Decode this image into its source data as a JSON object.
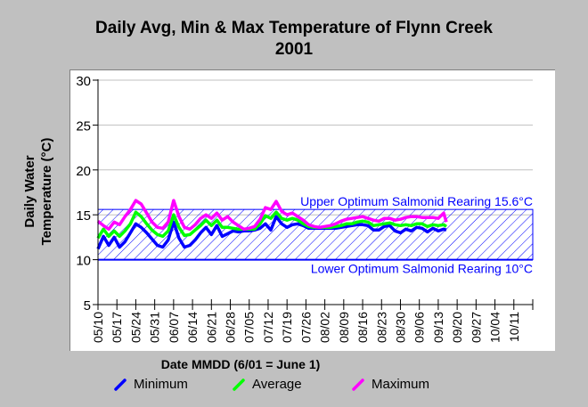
{
  "chart_data": {
    "type": "line",
    "title": "Daily Avg, Min & Max Temperature of Flynn Creek",
    "subtitle": "2001",
    "xlabel": "Date MMDD (6/01 = June 1)",
    "ylabel_line1": "Daily Water",
    "ylabel_line2": "Temperature (°C)",
    "ylim": [
      5,
      30
    ],
    "yticks": [
      5,
      10,
      15,
      20,
      25,
      30
    ],
    "grid": true,
    "x_start": "05/10",
    "x_days_range": [
      0,
      161
    ],
    "xticks": [
      "05/10",
      "05/17",
      "05/24",
      "05/31",
      "06/07",
      "06/14",
      "06/21",
      "06/28",
      "07/05",
      "07/12",
      "07/19",
      "07/26",
      "08/02",
      "08/09",
      "08/16",
      "08/23",
      "08/30",
      "09/06",
      "09/13",
      "09/20",
      "09/27",
      "10/04",
      "10/11",
      ""
    ],
    "band": {
      "lower": 10,
      "upper": 15.6,
      "upper_label": "Upper Optimum Salmonid Rearing 15.6°C",
      "lower_label": "Lower Optimum Salmonid Rearing 10°C",
      "color": "#0000ff"
    },
    "legend_position": "bottom",
    "x": [
      0,
      2,
      4,
      6,
      8,
      10,
      12,
      14,
      16,
      18,
      20,
      22,
      24,
      26,
      28,
      30,
      32,
      34,
      36,
      38,
      40,
      42,
      44,
      46,
      48,
      50,
      52,
      54,
      56,
      58,
      60,
      62,
      64,
      66,
      68,
      70,
      72,
      74,
      76,
      78,
      80,
      82,
      84,
      86,
      88,
      90,
      92,
      94,
      96,
      98,
      100,
      102,
      104,
      106,
      108,
      110,
      112,
      114,
      116,
      118,
      120,
      122,
      124,
      126,
      128,
      129
    ],
    "series": [
      {
        "name": "Minimum",
        "color": "#0000ff",
        "values": [
          11.2,
          12.6,
          11.6,
          12.5,
          11.4,
          12.0,
          13.0,
          14.0,
          13.6,
          13.0,
          12.3,
          11.6,
          11.4,
          12.2,
          14.2,
          12.4,
          11.4,
          11.6,
          12.2,
          13.0,
          13.6,
          12.8,
          13.8,
          12.6,
          12.9,
          13.2,
          13.1,
          13.2,
          13.2,
          13.3,
          13.5,
          14.0,
          13.3,
          14.8,
          14.0,
          13.6,
          13.9,
          14.0,
          13.8,
          13.5,
          13.5,
          13.5,
          13.5,
          13.5,
          13.5,
          13.6,
          13.7,
          13.8,
          13.9,
          13.9,
          13.8,
          13.3,
          13.3,
          13.7,
          13.8,
          13.2,
          13.0,
          13.4,
          13.2,
          13.6,
          13.5,
          13.1,
          13.5,
          13.2,
          13.4,
          13.3
        ]
      },
      {
        "name": "Average",
        "color": "#00ff00",
        "values": [
          12.4,
          13.4,
          12.6,
          13.2,
          12.6,
          13.2,
          14.0,
          15.3,
          14.8,
          14.0,
          13.3,
          12.8,
          12.6,
          13.2,
          15.0,
          13.6,
          12.7,
          12.8,
          13.3,
          13.8,
          14.4,
          13.8,
          14.4,
          13.6,
          13.6,
          13.5,
          13.4,
          13.4,
          13.4,
          13.4,
          14.0,
          14.9,
          14.6,
          15.3,
          14.6,
          14.4,
          14.6,
          14.4,
          14.0,
          13.7,
          13.6,
          13.6,
          13.6,
          13.6,
          13.7,
          13.8,
          14.0,
          14.0,
          14.2,
          14.3,
          14.2,
          13.8,
          13.9,
          14.0,
          14.1,
          13.9,
          13.8,
          13.9,
          13.8,
          14.0,
          14.0,
          13.7,
          13.9,
          13.8,
          13.9,
          13.7
        ]
      },
      {
        "name": "Maximum",
        "color": "#ff00ff",
        "values": [
          14.3,
          13.8,
          13.4,
          14.2,
          13.9,
          14.8,
          15.6,
          16.6,
          16.2,
          15.2,
          14.2,
          13.6,
          13.5,
          14.2,
          16.6,
          14.8,
          13.6,
          13.4,
          13.9,
          14.6,
          15.0,
          14.6,
          15.2,
          14.4,
          14.8,
          14.2,
          13.8,
          13.4,
          13.5,
          13.7,
          14.5,
          15.8,
          15.6,
          16.5,
          15.4,
          15.0,
          15.2,
          14.8,
          14.4,
          13.9,
          13.7,
          13.6,
          13.7,
          13.8,
          14.0,
          14.3,
          14.5,
          14.6,
          14.7,
          14.8,
          14.6,
          14.4,
          14.3,
          14.6,
          14.6,
          14.4,
          14.5,
          14.7,
          14.8,
          14.8,
          14.7,
          14.7,
          14.7,
          14.6,
          15.2,
          14.2
        ]
      }
    ]
  }
}
